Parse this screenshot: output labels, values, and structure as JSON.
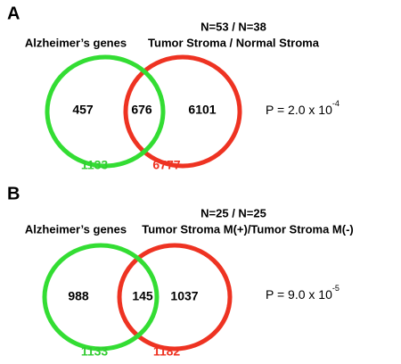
{
  "panels": [
    {
      "letter": "A",
      "left_label": "Alzheimer’s genes",
      "right_header": "N=53 / N=38",
      "right_label": "Tumor Stroma / Normal Stroma",
      "left_only": 457,
      "overlap": 676,
      "right_only": 6101,
      "p_text": "P = 2.0 x 10",
      "p_exponent": "-4",
      "left_total": 1133,
      "right_total": 6777
    },
    {
      "letter": "B",
      "left_label": "Alzheimer’s genes",
      "right_header": "N=25 / N=25",
      "right_label": "Tumor Stroma M(+)/Tumor Stroma M(-)",
      "left_only": 988,
      "overlap": 145,
      "right_only": 1037,
      "p_text": "P = 9.0 x 10",
      "p_exponent": "-5",
      "left_total": 1133,
      "right_total": 1182
    }
  ]
}
